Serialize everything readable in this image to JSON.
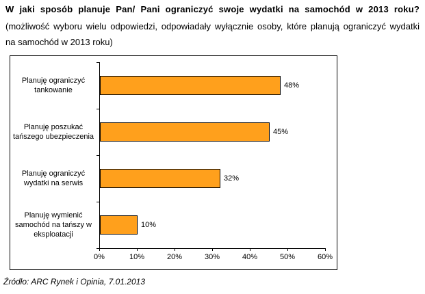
{
  "page": {
    "title": "W jaki sposób planuje Pan/ Pani ograniczyć swoje wydatki na samochód w 2013 roku?",
    "subtitle_line1": "(możliwość wyboru wielu odpowiedzi, odpowiadały wyłącznie osoby, które planują ograniczyć wydatki",
    "subtitle_line2": "na samochód w 2013 roku)",
    "source": "Źródło: ARC Rynek i Opinia, 7.01.2013"
  },
  "colors": {
    "bar_fill": "#FFA01C",
    "bar_border": "#000000",
    "frame_border": "#000000",
    "text": "#000000",
    "background": "#FFFFFF"
  },
  "chart_data": {
    "type": "bar",
    "orientation": "horizontal",
    "title": "W jaki sposób planuje Pan/ Pani ograniczyć swoje wydatki na samochód w 2013 roku?",
    "categories": [
      "Planuję ograniczyć tankowanie",
      "Planuję poszukać tańszego ubezpieczenia",
      "Planuję ograniczyć wydatki na serwis",
      "Planuję wymienić samochód na tańszy w eksploatacji"
    ],
    "category_lines": [
      [
        "Planuję ograniczyć",
        "tankowanie"
      ],
      [
        "Planuję poszukać",
        "tańszego ubezpieczenia"
      ],
      [
        "Planuję ograniczyć",
        "wydatki na serwis"
      ],
      [
        "Planuję wymienić",
        "samochód na tańszy w",
        "eksploatacji"
      ]
    ],
    "values": [
      48,
      45,
      32,
      10
    ],
    "value_labels": [
      "48%",
      "45%",
      "32%",
      "10%"
    ],
    "xlim": [
      0,
      60
    ],
    "x_tick_values": [
      0,
      10,
      20,
      30,
      40,
      50,
      60
    ],
    "x_tick_labels": [
      "0%",
      "10%",
      "20%",
      "30%",
      "40%",
      "50%",
      "60%"
    ],
    "xlabel": "",
    "ylabel": "",
    "grid": false,
    "legend": false
  }
}
